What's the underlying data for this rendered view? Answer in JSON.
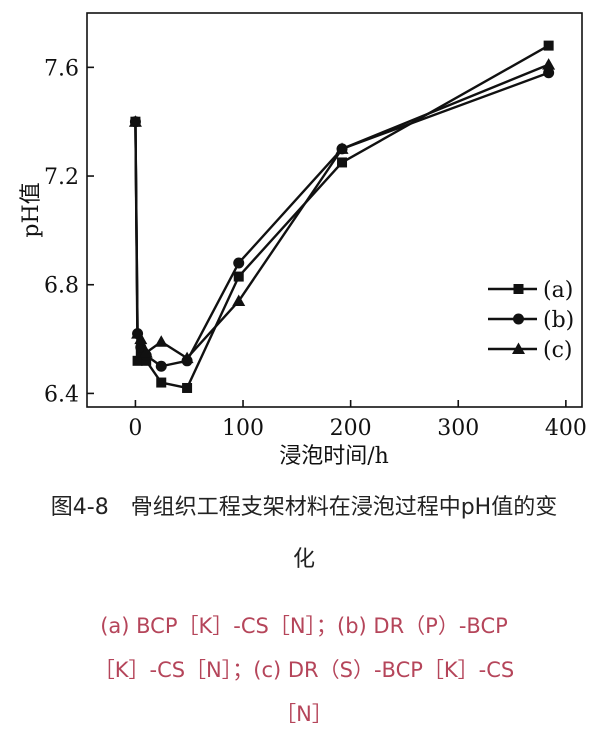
{
  "chart_data": {
    "type": "line",
    "title": "",
    "xlabel": "浸泡时间/h",
    "ylabel": "pH值",
    "xlim": [
      -45,
      415
    ],
    "ylim": [
      6.35,
      7.8
    ],
    "x_ticks": [
      0,
      100,
      200,
      300,
      400
    ],
    "x_tick_labels": [
      "0",
      "100",
      "200",
      "300",
      "400"
    ],
    "y_ticks": [
      6.4,
      6.8,
      7.2,
      7.6
    ],
    "y_tick_labels": [
      "6.4",
      "6.8",
      "7.2",
      "7.6"
    ],
    "grid": false,
    "legend_position": "bottom-right",
    "series": [
      {
        "name": "(a)",
        "marker": "square",
        "x": [
          0,
          2,
          5,
          10,
          24,
          48,
          96,
          192,
          384
        ],
        "y": [
          7.4,
          6.52,
          6.55,
          6.52,
          6.44,
          6.42,
          6.83,
          7.25,
          7.68
        ]
      },
      {
        "name": "(b)",
        "marker": "circle",
        "x": [
          0,
          2,
          5,
          10,
          24,
          48,
          96,
          192,
          384
        ],
        "y": [
          7.4,
          6.62,
          6.57,
          6.54,
          6.5,
          6.52,
          6.88,
          7.3,
          7.58
        ]
      },
      {
        "name": "(c)",
        "marker": "triangle",
        "x": [
          0,
          2,
          5,
          10,
          24,
          48,
          96,
          192,
          384
        ],
        "y": [
          7.4,
          6.62,
          6.6,
          6.55,
          6.59,
          6.53,
          6.74,
          7.3,
          7.61
        ]
      }
    ]
  },
  "caption": {
    "line1": "图4-8　骨组织工程支架材料在浸泡过程中pH值的变",
    "line2": "化"
  },
  "note": {
    "line1": "(a) BCP［K］-CS［N］；(b) DR（P）-BCP",
    "line2": "［K］-CS［N］；(c) DR（S）-BCP［K］-CS",
    "line3": "［N］"
  }
}
